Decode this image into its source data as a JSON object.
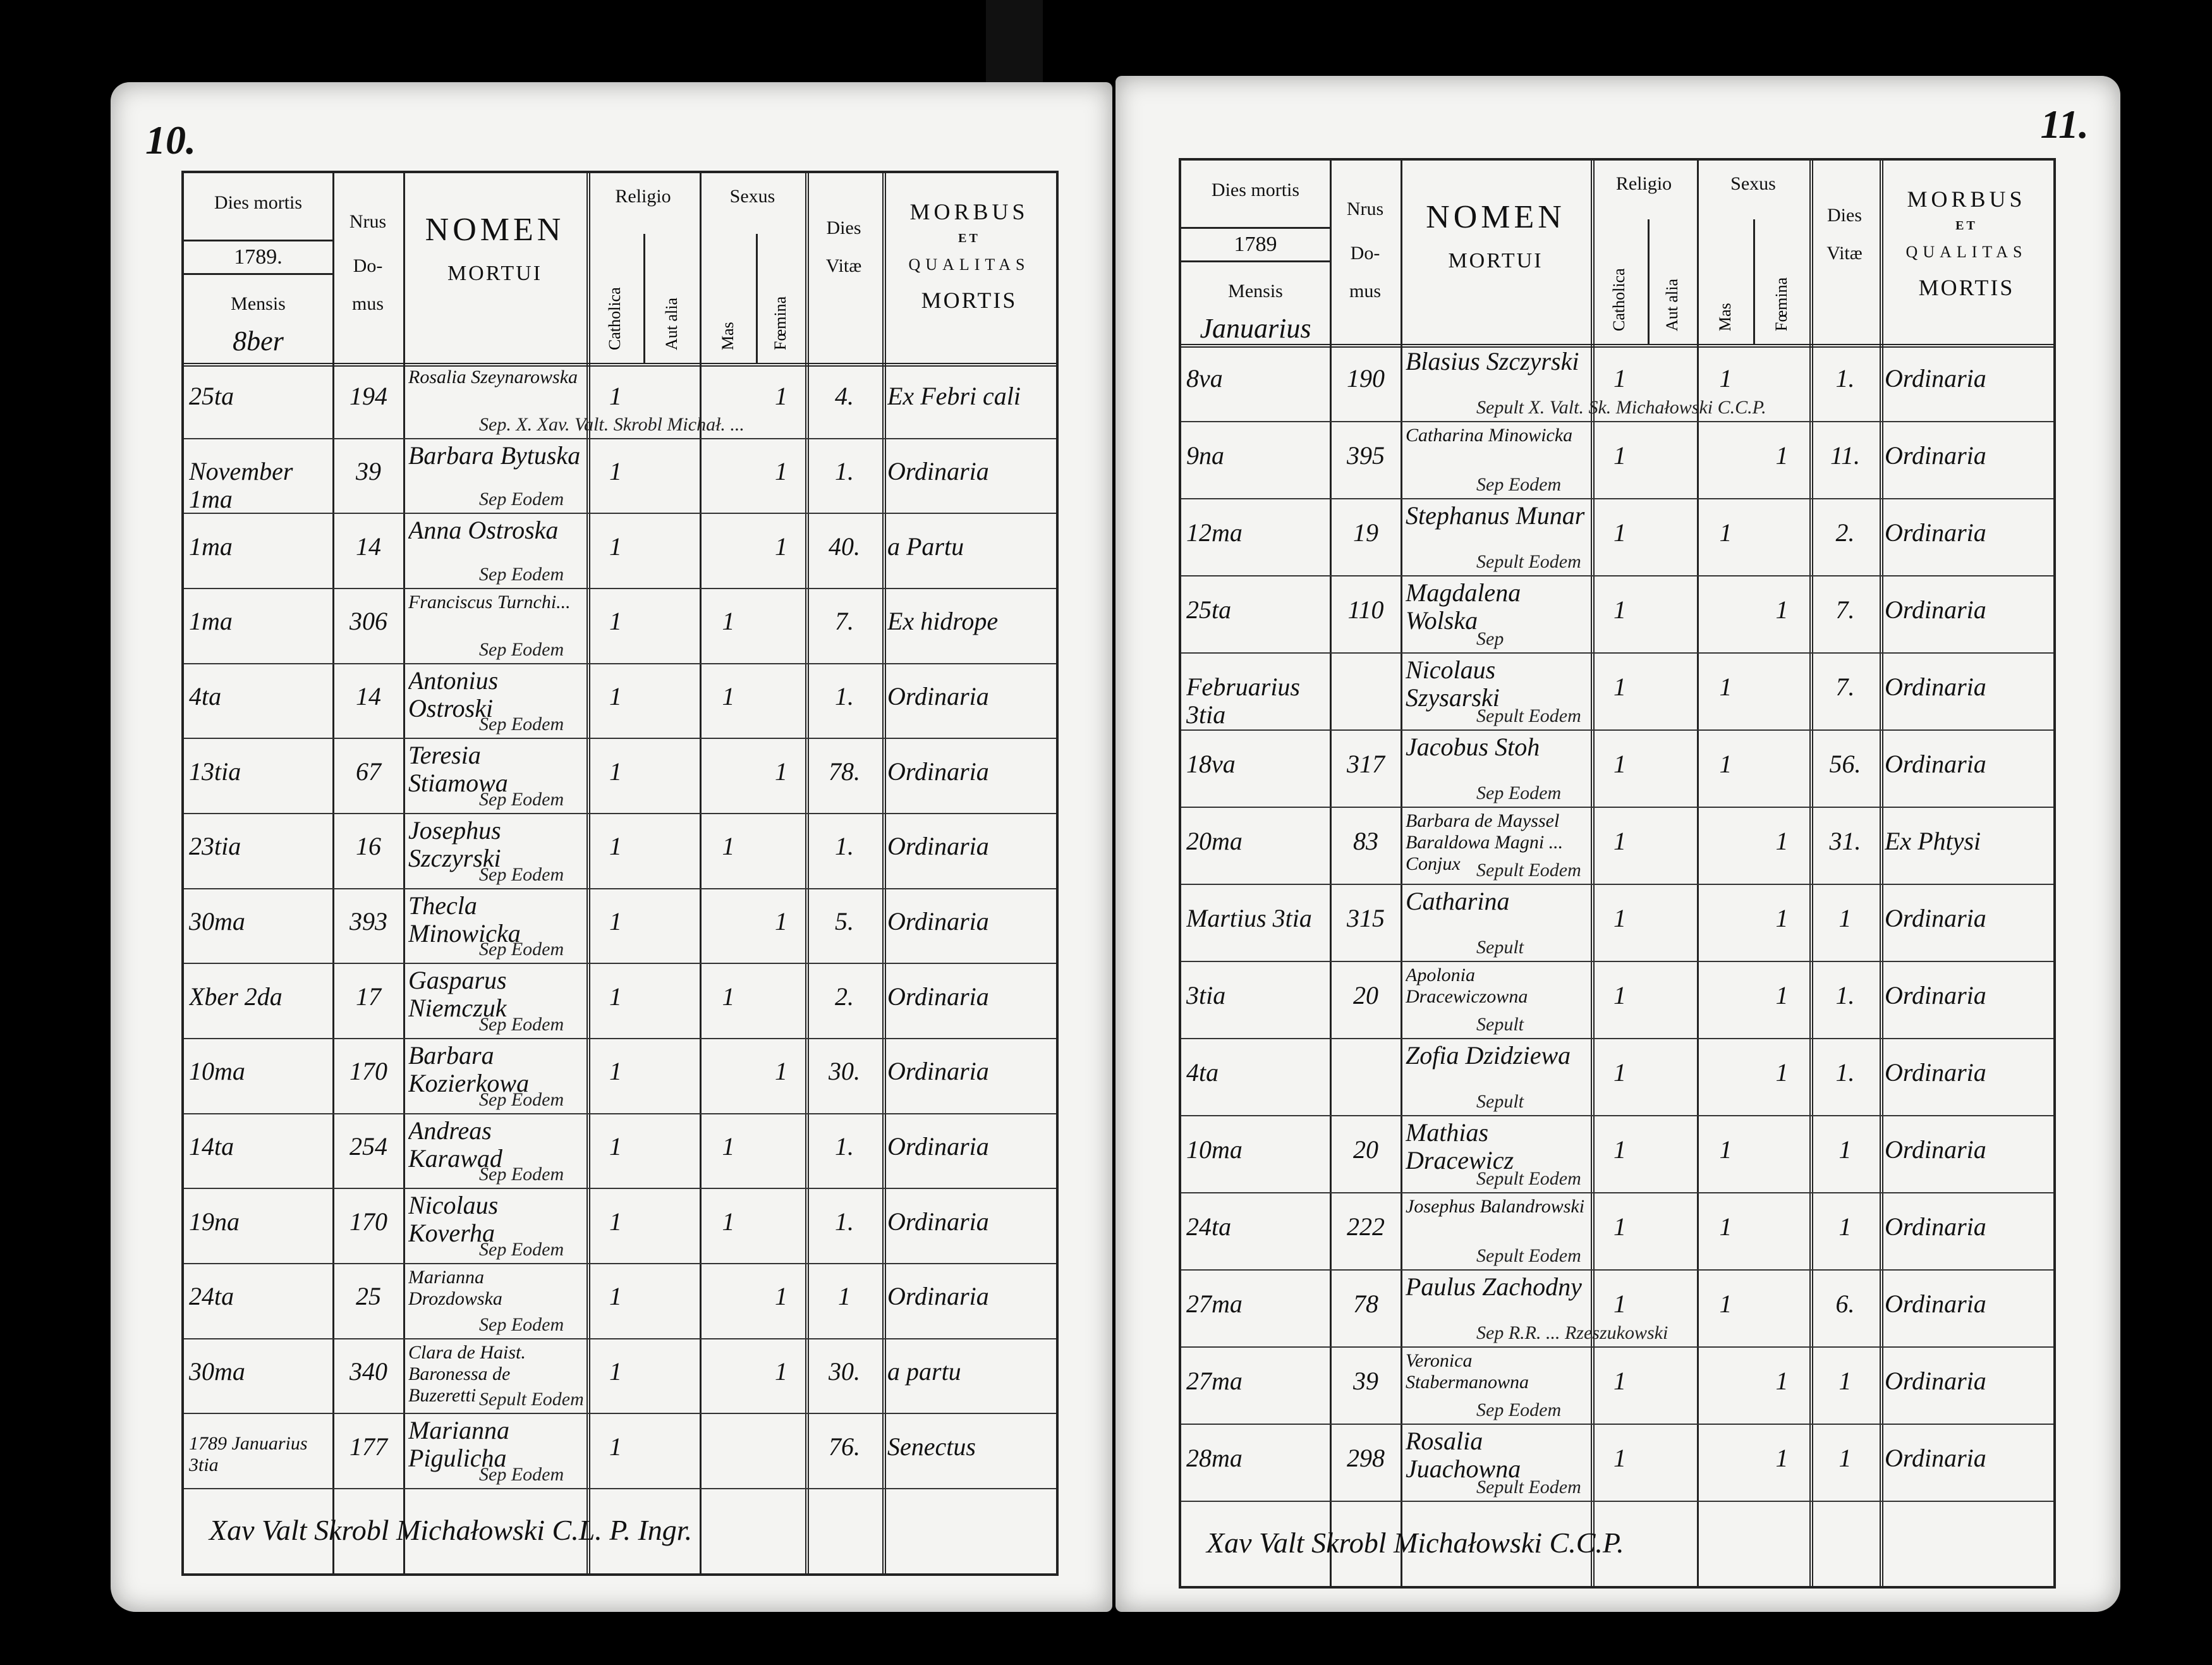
{
  "header": {
    "dies_mortis": "Dies mortis",
    "mensis": "Mensis",
    "nrus": "Nrus",
    "domus_1": "Do-",
    "domus_2": "mus",
    "nomen": "NOMEN",
    "mortui": "MORTUI",
    "religio": "Religio",
    "catholica": "Catholica",
    "aut_alia": "Aut alia",
    "sexus": "Sexus",
    "mas": "Mas",
    "femina": "Fœmina",
    "dies": "Dies",
    "vitae": "Vitæ",
    "morbus": "MORBUS",
    "et": "ET",
    "qualitas": "QUALITAS",
    "mortis": "MORTIS"
  },
  "left": {
    "page_number": "10.",
    "year": "1789.",
    "month": "8ber",
    "rows": [
      {
        "day": "25ta",
        "house": "194",
        "name": "Rosalia Szeynarowska",
        "cath": "1",
        "alia": "",
        "mas": "",
        "fem": "1",
        "vitae": "4.",
        "morbus": "Ex Febri cali",
        "note": "Sep. X. Xav. Valt. Skrobl Michał. ..."
      },
      {
        "day": "November 1ma",
        "house": "39",
        "name": "Barbara Bytuska",
        "cath": "1",
        "alia": "",
        "mas": "",
        "fem": "1",
        "vitae": "1.",
        "morbus": "Ordinaria",
        "note": "Sep Eodem"
      },
      {
        "day": "1ma",
        "house": "14",
        "name": "Anna Ostroska",
        "cath": "1",
        "alia": "",
        "mas": "",
        "fem": "1",
        "vitae": "40.",
        "morbus": "a Partu",
        "note": "Sep Eodem"
      },
      {
        "day": "1ma",
        "house": "306",
        "name": "Franciscus Turnchi...",
        "cath": "1",
        "alia": "",
        "mas": "1",
        "fem": "",
        "vitae": "7.",
        "morbus": "Ex hidrope",
        "note": "Sep Eodem"
      },
      {
        "day": "4ta",
        "house": "14",
        "name": "Antonius Ostroski",
        "cath": "1",
        "alia": "",
        "mas": "1",
        "fem": "",
        "vitae": "1.",
        "morbus": "Ordinaria",
        "note": "Sep Eodem"
      },
      {
        "day": "13tia",
        "house": "67",
        "name": "Teresia Stiamowa",
        "cath": "1",
        "alia": "",
        "mas": "",
        "fem": "1",
        "vitae": "78.",
        "morbus": "Ordinaria",
        "note": "Sep Eodem"
      },
      {
        "day": "23tia",
        "house": "16",
        "name": "Josephus Szczyrski",
        "cath": "1",
        "alia": "",
        "mas": "1",
        "fem": "",
        "vitae": "1.",
        "morbus": "Ordinaria",
        "note": "Sep Eodem"
      },
      {
        "day": "30ma",
        "house": "393",
        "name": "Thecla Minowicka",
        "cath": "1",
        "alia": "",
        "mas": "",
        "fem": "1",
        "vitae": "5.",
        "morbus": "Ordinaria",
        "note": "Sep Eodem"
      },
      {
        "day": "Xber 2da",
        "house": "17",
        "name": "Gasparus Niemczuk",
        "cath": "1",
        "alia": "",
        "mas": "1",
        "fem": "",
        "vitae": "2.",
        "morbus": "Ordinaria",
        "note": "Sep Eodem"
      },
      {
        "day": "10ma",
        "house": "170",
        "name": "Barbara Kozierkowa",
        "cath": "1",
        "alia": "",
        "mas": "",
        "fem": "1",
        "vitae": "30.",
        "morbus": "Ordinaria",
        "note": "Sep Eodem"
      },
      {
        "day": "14ta",
        "house": "254",
        "name": "Andreas Karawad",
        "cath": "1",
        "alia": "",
        "mas": "1",
        "fem": "",
        "vitae": "1.",
        "morbus": "Ordinaria",
        "note": "Sep Eodem"
      },
      {
        "day": "19na",
        "house": "170",
        "name": "Nicolaus Koverha",
        "cath": "1",
        "alia": "",
        "mas": "1",
        "fem": "",
        "vitae": "1.",
        "morbus": "Ordinaria",
        "note": "Sep Eodem"
      },
      {
        "day": "24ta",
        "house": "25",
        "name": "Marianna Drozdowska",
        "cath": "1",
        "alia": "",
        "mas": "",
        "fem": "1",
        "vitae": "1",
        "morbus": "Ordinaria",
        "note": "Sep Eodem"
      },
      {
        "day": "30ma",
        "house": "340",
        "name": "Clara de Haist. Baronessa de Buzeretti",
        "cath": "1",
        "alia": "",
        "mas": "",
        "fem": "1",
        "vitae": "30.",
        "morbus": "a partu",
        "note": "Sepult Eodem"
      },
      {
        "day": "1789 Januarius 3tia",
        "house": "177",
        "name": "Marianna Pigulicha",
        "cath": "1",
        "alia": "",
        "mas": "",
        "fem": "",
        "vitae": "76.",
        "morbus": "Senectus",
        "note": "Sep Eodem"
      }
    ],
    "signature": "Xav Valt Skrobl Michałowski C.L. P. Ingr."
  },
  "right": {
    "page_number": "11.",
    "year": "1789",
    "month": "Januarius",
    "rows": [
      {
        "day": "8va",
        "house": "190",
        "name": "Blasius Szczyrski",
        "cath": "1",
        "alia": "",
        "mas": "1",
        "fem": "",
        "vitae": "1.",
        "morbus": "Ordinaria",
        "note": "Sepult X. Valt. Sk. Michałowski C.C.P."
      },
      {
        "day": "9na",
        "house": "395",
        "name": "Catharina Minowicka",
        "cath": "1",
        "alia": "",
        "mas": "",
        "fem": "1",
        "vitae": "11.",
        "morbus": "Ordinaria",
        "note": "Sep Eodem"
      },
      {
        "day": "12ma",
        "house": "19",
        "name": "Stephanus Munar",
        "cath": "1",
        "alia": "",
        "mas": "1",
        "fem": "",
        "vitae": "2.",
        "morbus": "Ordinaria",
        "note": "Sepult Eodem"
      },
      {
        "day": "25ta",
        "house": "110",
        "name": "Magdalena Wolska",
        "cath": "1",
        "alia": "",
        "mas": "",
        "fem": "1",
        "vitae": "7.",
        "morbus": "Ordinaria",
        "note": "Sep"
      },
      {
        "day": "Februarius 3tia",
        "house": "",
        "name": "Nicolaus Szysarski",
        "cath": "1",
        "alia": "",
        "mas": "1",
        "fem": "",
        "vitae": "7.",
        "morbus": "Ordinaria",
        "note": "Sepult Eodem"
      },
      {
        "day": "18va",
        "house": "317",
        "name": "Jacobus Stoh",
        "cath": "1",
        "alia": "",
        "mas": "1",
        "fem": "",
        "vitae": "56.",
        "morbus": "Ordinaria",
        "note": "Sep Eodem"
      },
      {
        "day": "20ma",
        "house": "83",
        "name": "Barbara de Mayssel Baraldowa Magni ... Conjux",
        "cath": "1",
        "alia": "",
        "mas": "",
        "fem": "1",
        "vitae": "31.",
        "morbus": "Ex Phtysi",
        "note": "Sepult Eodem"
      },
      {
        "day": "Martius 3tia",
        "house": "315",
        "name": "Catharina",
        "cath": "1",
        "alia": "",
        "mas": "",
        "fem": "1",
        "vitae": "1",
        "morbus": "Ordinaria",
        "note": "Sepult"
      },
      {
        "day": "3tia",
        "house": "20",
        "name": "Apolonia Dracewiczowna",
        "cath": "1",
        "alia": "",
        "mas": "",
        "fem": "1",
        "vitae": "1.",
        "morbus": "Ordinaria",
        "note": "Sepult"
      },
      {
        "day": "4ta",
        "house": "",
        "name": "Zofia Dzidziewa",
        "cath": "1",
        "alia": "",
        "mas": "",
        "fem": "1",
        "vitae": "1.",
        "morbus": "Ordinaria",
        "note": "Sepult"
      },
      {
        "day": "10ma",
        "house": "20",
        "name": "Mathias Dracewicz",
        "cath": "1",
        "alia": "",
        "mas": "1",
        "fem": "",
        "vitae": "1",
        "morbus": "Ordinaria",
        "note": "Sepult Eodem"
      },
      {
        "day": "24ta",
        "house": "222",
        "name": "Josephus Balandrowski",
        "cath": "1",
        "alia": "",
        "mas": "1",
        "fem": "",
        "vitae": "1",
        "morbus": "Ordinaria",
        "note": "Sepult Eodem"
      },
      {
        "day": "27ma",
        "house": "78",
        "name": "Paulus Zachodny",
        "cath": "1",
        "alia": "",
        "mas": "1",
        "fem": "",
        "vitae": "6.",
        "morbus": "Ordinaria",
        "note": "Sep R.R. ... Rzeszukowski"
      },
      {
        "day": "27ma",
        "house": "39",
        "name": "Veronica Stabermanowna",
        "cath": "1",
        "alia": "",
        "mas": "",
        "fem": "1",
        "vitae": "1",
        "morbus": "Ordinaria",
        "note": "Sep Eodem"
      },
      {
        "day": "28ma",
        "house": "298",
        "name": "Rosalia Juachowna",
        "cath": "1",
        "alia": "",
        "mas": "",
        "fem": "1",
        "vitae": "1",
        "morbus": "Ordinaria",
        "note": "Sepult Eodem"
      }
    ],
    "signature": "Xav Valt Skrobl Michałowski C.C.P."
  }
}
